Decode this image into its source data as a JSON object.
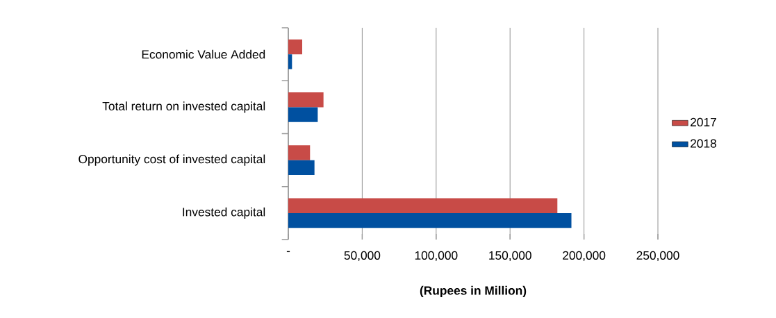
{
  "chart_data": {
    "type": "bar",
    "orientation": "horizontal",
    "xlabel": "**(Rupees in Million)**",
    "categories": [
      "Economic Value Added",
      "Total return on invested capital",
      "Opportunity cost of invested capital",
      "Invested capital"
    ],
    "series": [
      {
        "name": "2017",
        "color": "#c84b47",
        "values": [
          9400,
          23800,
          14700,
          182000
        ]
      },
      {
        "name": "2018",
        "color": "#0050a0",
        "values": [
          2500,
          19900,
          17700,
          191500
        ]
      }
    ],
    "xlim": [
      0,
      250000
    ],
    "xticks": [
      {
        "value": 0,
        "label": "-"
      },
      {
        "value": 50000,
        "label": "50,000"
      },
      {
        "value": 100000,
        "label": "100,000"
      },
      {
        "value": 150000,
        "label": "150,000"
      },
      {
        "value": 200000,
        "label": "200,000"
      },
      {
        "value": 250000,
        "label": "250,000"
      }
    ],
    "grid": "x",
    "legend": "right"
  }
}
